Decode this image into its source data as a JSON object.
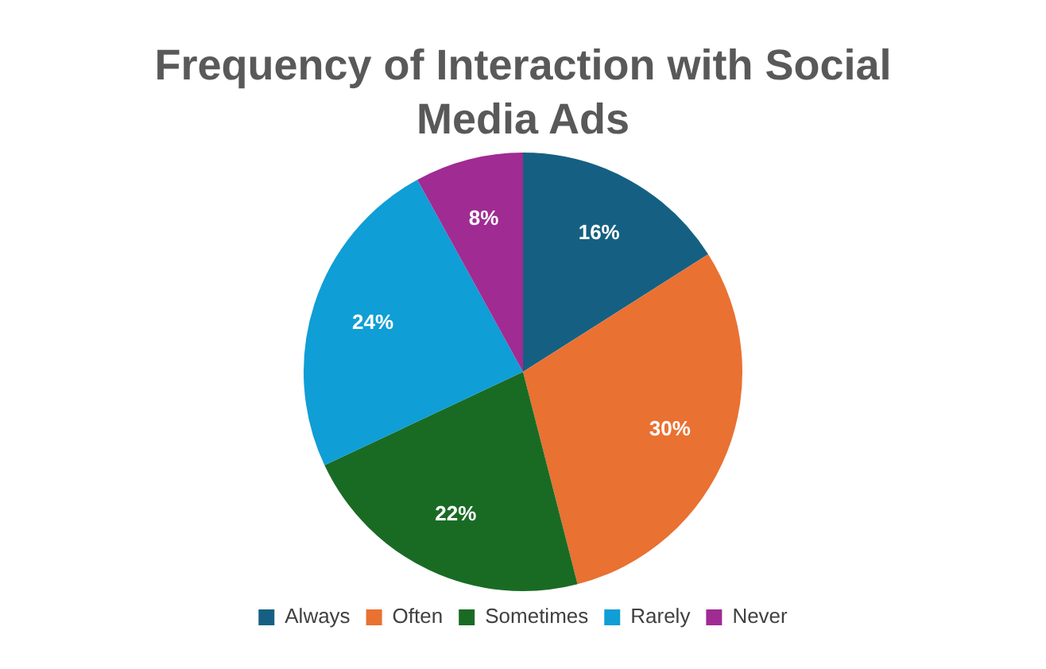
{
  "chart_data": {
    "type": "pie",
    "title": "Frequency of Interaction with Social Media Ads",
    "categories": [
      "Always",
      "Often",
      "Sometimes",
      "Rarely",
      "Never"
    ],
    "values": [
      16,
      30,
      22,
      24,
      8
    ],
    "colors": [
      "#156082",
      "#e97132",
      "#196b24",
      "#0f9ed5",
      "#a02b93"
    ],
    "value_labels": [
      "16%",
      "30%",
      "22%",
      "24%",
      "8%"
    ],
    "legend": "bottom"
  }
}
